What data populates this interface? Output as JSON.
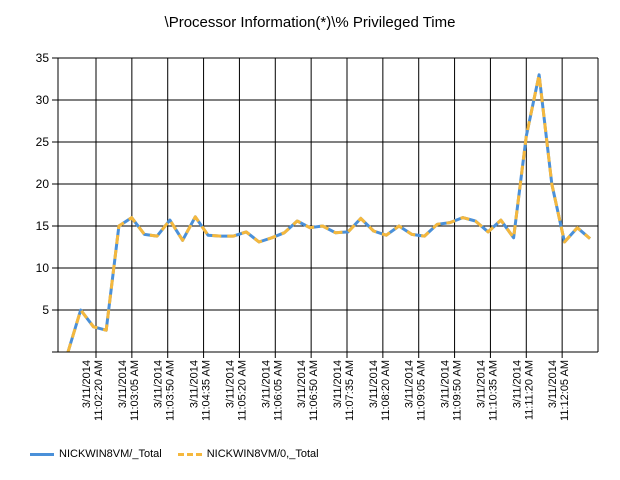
{
  "title": "\\Processor Information(*)\\% Privileged Time",
  "chart_data": {
    "type": "line",
    "title": "\\Processor Information(*)\\% Privileged Time",
    "xlabel": "",
    "ylabel": "",
    "ylim": [
      0,
      35
    ],
    "yticks": [
      5,
      10,
      15,
      20,
      25,
      30,
      35
    ],
    "grid": true,
    "legend_position": "bottom-left",
    "x_tick_labels": [
      [
        "3/11/2014",
        "11:02:20 AM"
      ],
      [
        "3/11/2014",
        "11:03:05 AM"
      ],
      [
        "3/11/2014",
        "11:03:50 AM"
      ],
      [
        "3/11/2014",
        "11:04:35 AM"
      ],
      [
        "3/11/2014",
        "11:05:20 AM"
      ],
      [
        "3/11/2014",
        "11:06:05 AM"
      ],
      [
        "3/11/2014",
        "11:06:50 AM"
      ],
      [
        "3/11/2014",
        "11:07:35 AM"
      ],
      [
        "3/11/2014",
        "11:08:20 AM"
      ],
      [
        "3/11/2014",
        "11:09:05 AM"
      ],
      [
        "3/11/2014",
        "11:09:50 AM"
      ],
      [
        "3/11/2014",
        "11:10:35 AM"
      ],
      [
        "3/11/2014",
        "11:11:20 AM"
      ],
      [
        "3/11/2014",
        "11:12:05 AM"
      ]
    ],
    "series": [
      {
        "name": "NICKWIN8VM/_Total",
        "color": "#4a90d9",
        "style": "solid",
        "values": [
          0,
          5,
          3,
          2.6,
          15,
          16,
          14,
          13.8,
          15.7,
          13.3,
          16.1,
          13.9,
          13.8,
          13.8,
          14.3,
          13.1,
          13.6,
          14.2,
          15.6,
          14.8,
          15,
          14.2,
          14.3,
          15.9,
          14.4,
          13.9,
          15,
          14,
          13.8,
          15.2,
          15.4,
          16,
          15.6,
          14.3,
          15.7,
          13.6,
          25.7,
          33,
          20,
          13.1,
          14.8,
          13.5
        ]
      },
      {
        "name": "NICKWIN8VM/0,_Total",
        "color": "#f5b83d",
        "style": "dashed",
        "values": [
          0,
          5,
          3,
          2.6,
          15,
          16,
          14,
          13.8,
          15.7,
          13.3,
          16.1,
          13.9,
          13.8,
          13.8,
          14.3,
          13.1,
          13.6,
          14.2,
          15.6,
          14.8,
          15,
          14.2,
          14.3,
          15.9,
          14.4,
          13.9,
          15,
          14,
          13.8,
          15.2,
          15.4,
          16,
          15.6,
          14.3,
          15.7,
          13.6,
          25.7,
          33,
          20,
          13.1,
          14.8,
          13.5
        ]
      }
    ]
  }
}
